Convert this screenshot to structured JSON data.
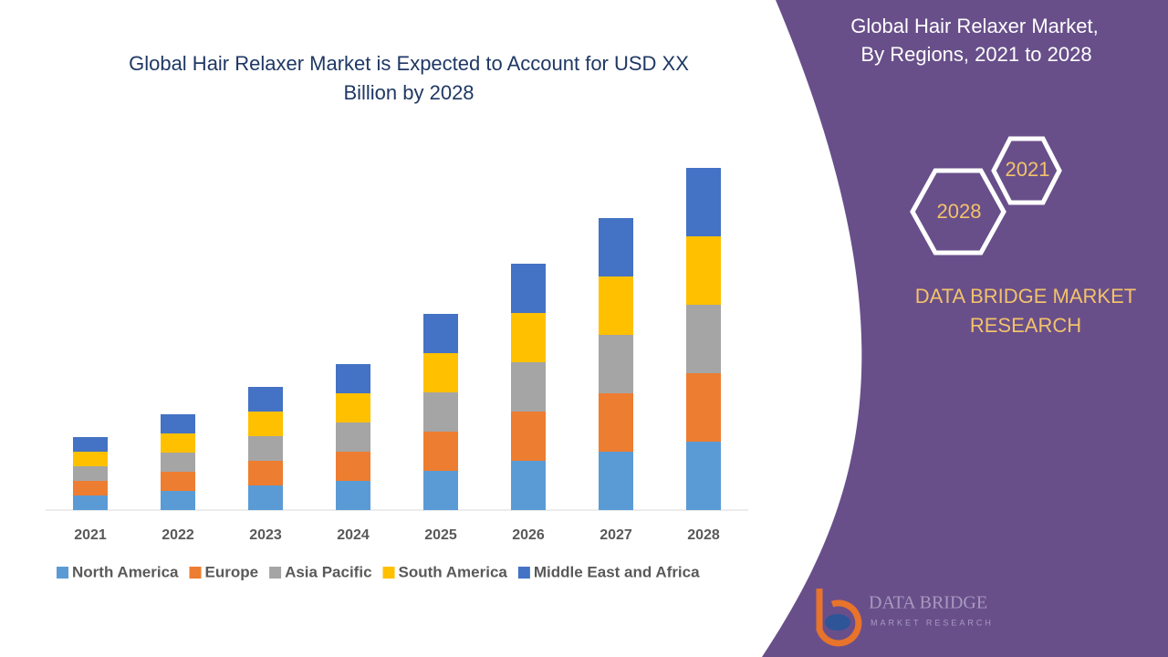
{
  "chart_data": {
    "type": "stacked-bar",
    "title": "Global Hair Relaxer Market is Expected to Account for USD XX Billion by 2028",
    "categories": [
      "2021",
      "2022",
      "2023",
      "2024",
      "2025",
      "2026",
      "2027",
      "2028"
    ],
    "series": [
      {
        "name": "North America",
        "color": "#5b9bd5",
        "values": [
          16,
          21,
          27,
          32,
          43,
          54,
          64,
          75
        ]
      },
      {
        "name": "Europe",
        "color": "#ed7d31",
        "values": [
          16,
          21,
          27,
          32,
          43,
          54,
          64,
          75
        ]
      },
      {
        "name": "Asia Pacific",
        "color": "#a5a5a5",
        "values": [
          16,
          21,
          27,
          32,
          43,
          54,
          64,
          75
        ]
      },
      {
        "name": "South America",
        "color": "#ffc000",
        "values": [
          16,
          21,
          27,
          32,
          43,
          54,
          64,
          75
        ]
      },
      {
        "name": "Middle East and Africa",
        "color": "#4472c4",
        "values": [
          16,
          21,
          27,
          32,
          43,
          54,
          64,
          75
        ]
      }
    ],
    "legend": "bottom"
  },
  "panel": {
    "title": [
      "Global Hair Relaxer Market,",
      "By Regions,  2021 to 2028"
    ],
    "hex_labels": [
      "2021",
      "2028"
    ],
    "brand": [
      "DATA BRIDGE MARKET",
      "RESEARCH"
    ],
    "logo": [
      "DATA BRIDGE",
      "MARKET RESEARCH"
    ]
  }
}
